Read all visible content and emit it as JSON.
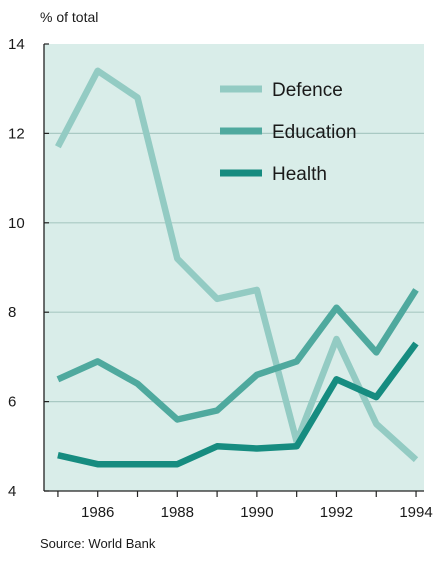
{
  "chart_data": {
    "type": "line",
    "ylabel": "% of total",
    "source": "Source: World Bank",
    "x": [
      1985,
      1986,
      1987,
      1988,
      1989,
      1990,
      1991,
      1992,
      1993,
      1994
    ],
    "xticks": [
      1986,
      1988,
      1990,
      1992,
      1994
    ],
    "xlim": [
      1984.65,
      1994.2
    ],
    "yticks": [
      4,
      6,
      8,
      10,
      12,
      14
    ],
    "ylim": [
      4,
      14
    ],
    "grid": true,
    "legend_position": "top-right",
    "background_color": "#d9ede9",
    "series": [
      {
        "name": "Defence",
        "color": "#93cbc3",
        "values": [
          11.7,
          13.4,
          12.8,
          9.2,
          8.3,
          8.5,
          5.1,
          7.4,
          5.5,
          4.7
        ]
      },
      {
        "name": "Education",
        "color": "#4fa99e",
        "values": [
          6.5,
          6.9,
          6.4,
          5.6,
          5.8,
          6.6,
          6.9,
          8.1,
          7.1,
          8.5
        ]
      },
      {
        "name": "Health",
        "color": "#168c80",
        "values": [
          4.8,
          4.6,
          4.6,
          4.6,
          5.0,
          4.95,
          5.0,
          6.5,
          6.1,
          7.3
        ]
      }
    ]
  }
}
